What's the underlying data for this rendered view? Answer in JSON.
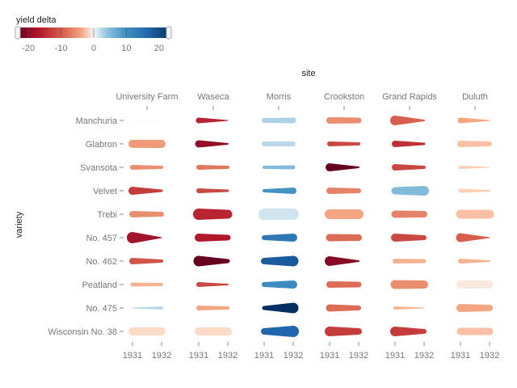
{
  "chart_data": {
    "type": "faceted-slope",
    "facet_title": "site",
    "y_title": "variety",
    "legend": {
      "title": "yield delta",
      "position": "top-left",
      "domain": [
        -23,
        23
      ],
      "ticks": [
        -20,
        -10,
        0,
        10,
        20
      ],
      "scheme": "red-blue diverging"
    },
    "x_categories": [
      "1931",
      "1932"
    ],
    "sites": [
      "University Farm",
      "Waseca",
      "Morris",
      "Crookston",
      "Grand Rapids",
      "Duluth"
    ],
    "varieties": [
      "Manchuria",
      "Glabron",
      "Svansota",
      "Velvet",
      "Trebi",
      "No. 457",
      "No. 462",
      "Peatland",
      "No. 475",
      "Wisconsin No. 38"
    ],
    "values": [
      {
        "site": "University Farm",
        "variety": "Manchuria",
        "delta": 0,
        "w1931": 1.0,
        "w1932": 1.0
      },
      {
        "site": "University Farm",
        "variety": "Glabron",
        "delta": -7,
        "w1931": 10,
        "w1932": 10
      },
      {
        "site": "University Farm",
        "variety": "Svansota",
        "delta": -8,
        "w1931": 6,
        "w1932": 4
      },
      {
        "site": "University Farm",
        "variety": "Velvet",
        "delta": -15,
        "w1931": 10,
        "w1932": 3
      },
      {
        "site": "University Farm",
        "variety": "Trebi",
        "delta": -8,
        "w1931": 8,
        "w1932": 6
      },
      {
        "site": "University Farm",
        "variety": "No. 457",
        "delta": -19,
        "w1931": 14,
        "w1932": 1
      },
      {
        "site": "University Farm",
        "variety": "No. 462",
        "delta": -13,
        "w1931": 8,
        "w1932": 4
      },
      {
        "site": "University Farm",
        "variety": "Peatland",
        "delta": -5,
        "w1931": 5,
        "w1932": 4
      },
      {
        "site": "University Farm",
        "variety": "No. 475",
        "delta": 5,
        "w1931": 1,
        "w1932": 4
      },
      {
        "site": "University Farm",
        "variety": "Wisconsin No. 38",
        "delta": -2,
        "w1931": 10,
        "w1932": 10
      },
      {
        "site": "Waseca",
        "variety": "Manchuria",
        "delta": -17,
        "w1931": 7,
        "w1932": 1
      },
      {
        "site": "Waseca",
        "variety": "Glabron",
        "delta": -20,
        "w1931": 9,
        "w1932": 2
      },
      {
        "site": "Waseca",
        "variety": "Svansota",
        "delta": -10,
        "w1931": 6,
        "w1932": 4
      },
      {
        "site": "Waseca",
        "variety": "Velvet",
        "delta": -14,
        "w1931": 6,
        "w1932": 3
      },
      {
        "site": "Waseca",
        "variety": "Trebi",
        "delta": -17,
        "w1931": 14,
        "w1932": 11
      },
      {
        "site": "Waseca",
        "variety": "No. 457",
        "delta": -18,
        "w1931": 10,
        "w1932": 7
      },
      {
        "site": "Waseca",
        "variety": "No. 462",
        "delta": -23,
        "w1931": 13,
        "w1932": 5
      },
      {
        "site": "Waseca",
        "variety": "Peatland",
        "delta": -14,
        "w1931": 6,
        "w1932": 2
      },
      {
        "site": "Waseca",
        "variety": "No. 475",
        "delta": -6,
        "w1931": 6,
        "w1932": 4
      },
      {
        "site": "Waseca",
        "variety": "Wisconsin No. 38",
        "delta": -2,
        "w1931": 10,
        "w1932": 10
      },
      {
        "site": "Morris",
        "variety": "Manchuria",
        "delta": 6,
        "w1931": 6,
        "w1932": 7
      },
      {
        "site": "Morris",
        "variety": "Glabron",
        "delta": 5,
        "w1931": 6,
        "w1932": 6
      },
      {
        "site": "Morris",
        "variety": "Svansota",
        "delta": 9,
        "w1931": 4,
        "w1932": 5
      },
      {
        "site": "Morris",
        "variety": "Velvet",
        "delta": 13,
        "w1931": 4,
        "w1932": 8
      },
      {
        "site": "Morris",
        "variety": "Trebi",
        "delta": 3,
        "w1931": 14,
        "w1932": 14
      },
      {
        "site": "Morris",
        "variety": "No. 457",
        "delta": 16,
        "w1931": 6,
        "w1932": 10
      },
      {
        "site": "Morris",
        "variety": "No. 462",
        "delta": 19,
        "w1931": 8,
        "w1932": 13
      },
      {
        "site": "Morris",
        "variety": "Peatland",
        "delta": 14,
        "w1931": 6,
        "w1932": 10
      },
      {
        "site": "Morris",
        "variety": "No. 475",
        "delta": 23,
        "w1931": 5,
        "w1932": 13
      },
      {
        "site": "Morris",
        "variety": "Wisconsin No. 38",
        "delta": 18,
        "w1931": 8,
        "w1932": 14
      },
      {
        "site": "Crookston",
        "variety": "Manchuria",
        "delta": -8,
        "w1931": 8,
        "w1932": 7
      },
      {
        "site": "Crookston",
        "variety": "Glabron",
        "delta": -14,
        "w1931": 6,
        "w1932": 4
      },
      {
        "site": "Crookston",
        "variety": "Svansota",
        "delta": -23,
        "w1931": 10,
        "w1932": 2
      },
      {
        "site": "Crookston",
        "variety": "Velvet",
        "delta": -9,
        "w1931": 8,
        "w1932": 6
      },
      {
        "site": "Crookston",
        "variety": "Trebi",
        "delta": -6,
        "w1931": 12,
        "w1932": 12
      },
      {
        "site": "Crookston",
        "variety": "No. 457",
        "delta": -11,
        "w1931": 9,
        "w1932": 8
      },
      {
        "site": "Crookston",
        "variety": "No. 462",
        "delta": -21,
        "w1931": 12,
        "w1932": 2
      },
      {
        "site": "Crookston",
        "variety": "Peatland",
        "delta": -11,
        "w1931": 8,
        "w1932": 7
      },
      {
        "site": "Crookston",
        "variety": "No. 475",
        "delta": -11,
        "w1931": 9,
        "w1932": 6
      },
      {
        "site": "Crookston",
        "variety": "Wisconsin No. 38",
        "delta": -15,
        "w1931": 12,
        "w1932": 8
      },
      {
        "site": "Grand Rapids",
        "variety": "Manchuria",
        "delta": -12,
        "w1931": 12,
        "w1932": 2
      },
      {
        "site": "Grand Rapids",
        "variety": "Glabron",
        "delta": -16,
        "w1931": 8,
        "w1932": 3
      },
      {
        "site": "Grand Rapids",
        "variety": "Svansota",
        "delta": -14,
        "w1931": 8,
        "w1932": 4
      },
      {
        "site": "Grand Rapids",
        "variety": "Velvet",
        "delta": 9,
        "w1931": 9,
        "w1932": 12
      },
      {
        "site": "Grand Rapids",
        "variety": "Trebi",
        "delta": -9,
        "w1931": 9,
        "w1932": 8
      },
      {
        "site": "Grand Rapids",
        "variety": "No. 457",
        "delta": -14,
        "w1931": 10,
        "w1932": 6
      },
      {
        "site": "Grand Rapids",
        "variety": "No. 462",
        "delta": -5,
        "w1931": 6,
        "w1932": 5
      },
      {
        "site": "Grand Rapids",
        "variety": "Peatland",
        "delta": -8,
        "w1931": 11,
        "w1932": 10
      },
      {
        "site": "Grand Rapids",
        "variety": "No. 475",
        "delta": -5,
        "w1931": 4,
        "w1932": 1
      },
      {
        "site": "Grand Rapids",
        "variety": "Wisconsin No. 38",
        "delta": -15,
        "w1931": 12,
        "w1932": 6
      },
      {
        "site": "Duluth",
        "variety": "Manchuria",
        "delta": -6,
        "w1931": 7,
        "w1932": 1
      },
      {
        "site": "Duluth",
        "variety": "Glabron",
        "delta": -4,
        "w1931": 8,
        "w1932": 6
      },
      {
        "site": "Duluth",
        "variety": "Svansota",
        "delta": -3,
        "w1931": 4,
        "w1932": 1
      },
      {
        "site": "Duluth",
        "variety": "Velvet",
        "delta": -3,
        "w1931": 5,
        "w1932": 2
      },
      {
        "site": "Duluth",
        "variety": "Trebi",
        "delta": -4,
        "w1931": 11,
        "w1932": 11
      },
      {
        "site": "Duluth",
        "variety": "No. 457",
        "delta": -12,
        "w1931": 11,
        "w1932": 1
      },
      {
        "site": "Duluth",
        "variety": "No. 462",
        "delta": -5,
        "w1931": 6,
        "w1932": 2
      },
      {
        "site": "Duluth",
        "variety": "Peatland",
        "delta": -1,
        "w1931": 10,
        "w1932": 10
      },
      {
        "site": "Duluth",
        "variety": "No. 475",
        "delta": -6,
        "w1931": 10,
        "w1932": 8
      },
      {
        "site": "Duluth",
        "variety": "Wisconsin No. 38",
        "delta": -4,
        "w1931": 9,
        "w1932": 9
      }
    ]
  }
}
